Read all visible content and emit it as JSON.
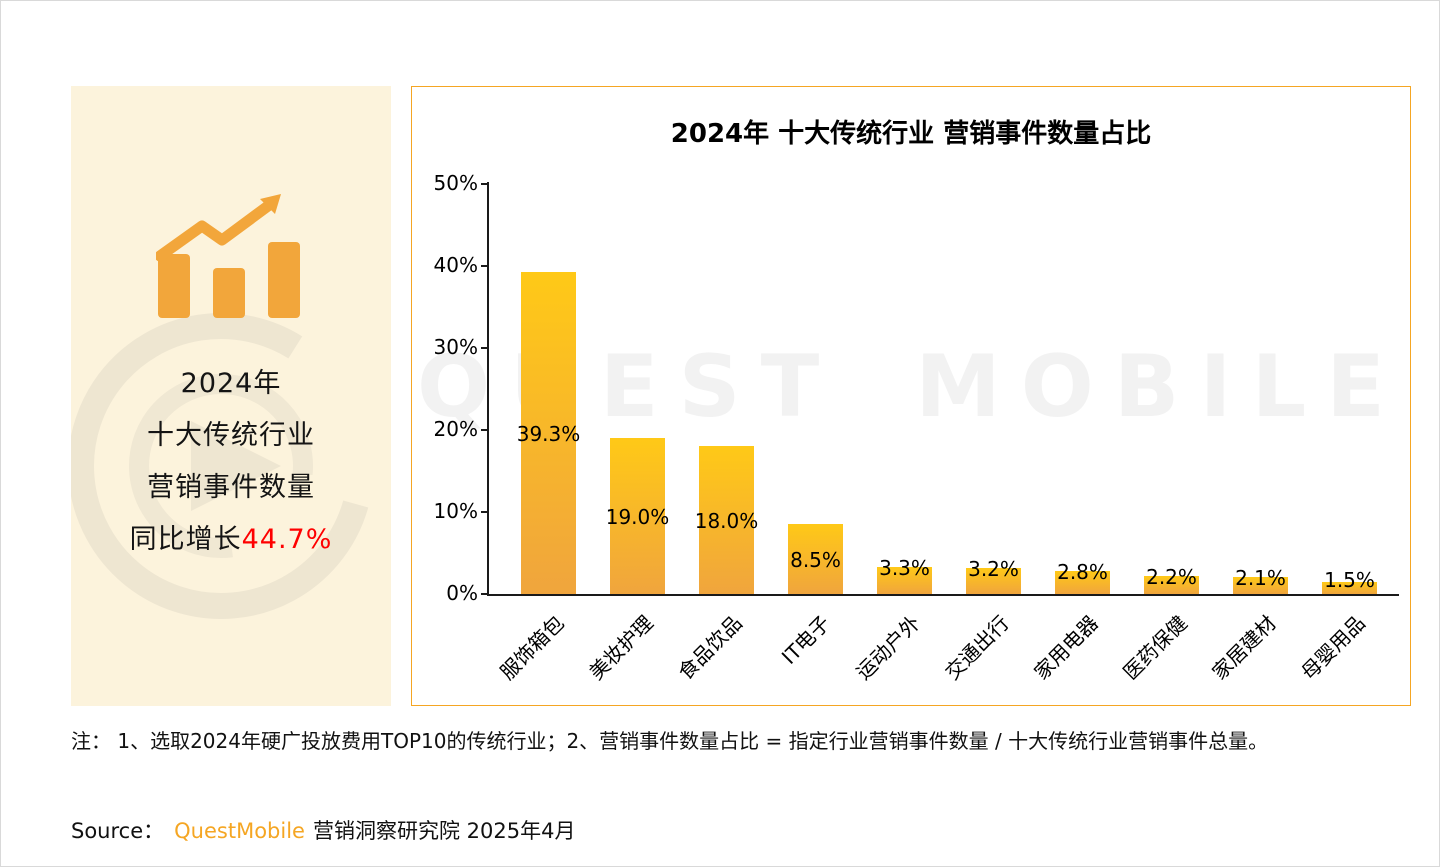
{
  "left_panel": {
    "line1": "2024年",
    "line2": "十大传统行业",
    "line3": "营销事件数量",
    "growth_prefix": "同比增长",
    "growth_value": "44.7%",
    "growth_color": "#FE0000"
  },
  "chart_data": {
    "type": "bar",
    "title": "2024年 十大传统行业 营销事件数量占比",
    "categories": [
      "服饰箱包",
      "美妆护理",
      "食品饮品",
      "IT电子",
      "运动户外",
      "交通出行",
      "家用电器",
      "医药保健",
      "家居建材",
      "母婴用品"
    ],
    "values": [
      39.3,
      19.0,
      18.0,
      8.5,
      3.3,
      3.2,
      2.8,
      2.2,
      2.1,
      1.5
    ],
    "value_labels": [
      "39.3%",
      "19.0%",
      "18.0%",
      "8.5%",
      "3.3%",
      "3.2%",
      "2.8%",
      "2.2%",
      "2.1%",
      "1.5%"
    ],
    "xlabel": "",
    "ylabel": "",
    "ylim": [
      0,
      50
    ],
    "yticks": [
      {
        "value": 0,
        "label": "0%"
      },
      {
        "value": 10,
        "label": "10%"
      },
      {
        "value": 20,
        "label": "20%"
      },
      {
        "value": 30,
        "label": "30%"
      },
      {
        "value": 40,
        "label": "40%"
      },
      {
        "value": 50,
        "label": "50%"
      }
    ],
    "grid": false,
    "legend": false,
    "bar_gradient_top": "#FFC917",
    "bar_gradient_bottom": "#F0A53D",
    "panel_border_color": "#F5A623"
  },
  "watermark": {
    "text": "QUEST MOBILE"
  },
  "footer": {
    "note": "注： 1、选取2024年硬广投放费用TOP10的传统行业；2、营销事件数量占比 = 指定行业营销事件数量 / 十大传统行业营销事件总量。",
    "source_label": "Source：",
    "source_brand": "QuestMobile",
    "source_rest": "营销洞察研究院 2025年4月",
    "brand_color": "#F5A623"
  }
}
